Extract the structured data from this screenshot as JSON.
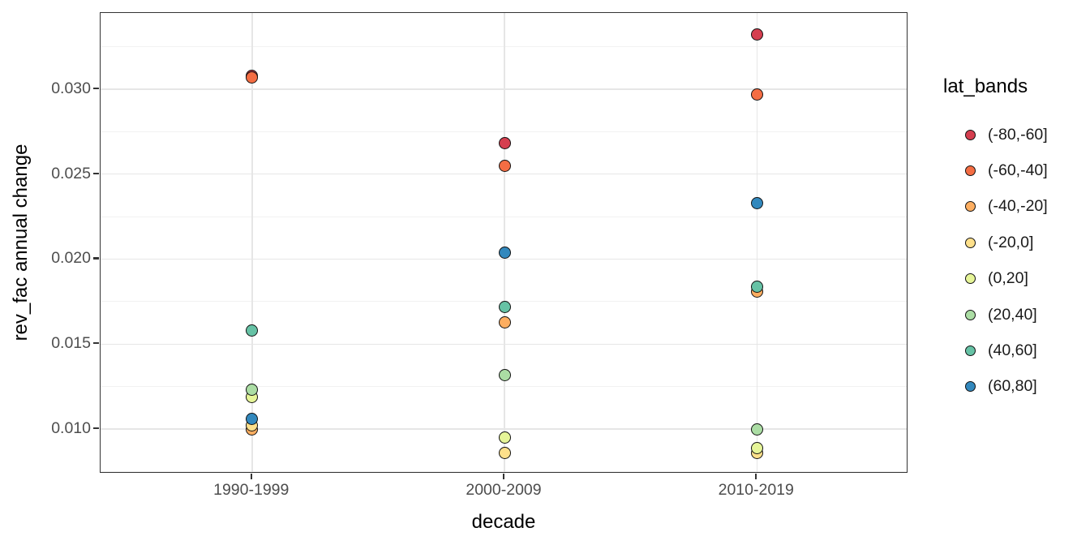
{
  "chart_data": {
    "type": "scatter",
    "title": "",
    "xlabel": "decade",
    "ylabel": "rev_fac annual change",
    "categories": [
      "1990-1999",
      "2000-2009",
      "2010-2019"
    ],
    "series": [
      {
        "name": "(-80,-60]",
        "color": "#D53E4F",
        "values": [
          0.0308,
          0.0268,
          0.0332
        ]
      },
      {
        "name": "(-60,-40]",
        "color": "#F46D43",
        "values": [
          0.0307,
          0.0255,
          0.0297
        ]
      },
      {
        "name": "(-40,-20]",
        "color": "#FDAE61",
        "values": [
          0.01,
          0.0163,
          0.0181
        ]
      },
      {
        "name": "(-20,0]",
        "color": "#FEE08B",
        "values": [
          0.0102,
          0.0086,
          0.0086
        ]
      },
      {
        "name": "(0,20]",
        "color": "#E6F598",
        "values": [
          0.0119,
          0.0095,
          0.0089
        ]
      },
      {
        "name": "(20,40]",
        "color": "#ABDDA4",
        "values": [
          0.0123,
          0.0132,
          0.01
        ]
      },
      {
        "name": "(40,60]",
        "color": "#66C2A5",
        "values": [
          0.0158,
          0.0172,
          0.0184
        ]
      },
      {
        "name": "(60,80]",
        "color": "#3288BD",
        "values": [
          0.0106,
          0.0204,
          0.0233
        ]
      }
    ],
    "y_ticks": [
      0.01,
      0.015,
      0.02,
      0.025,
      0.03
    ],
    "y_tick_labels": [
      "0.010",
      "0.015",
      "0.020",
      "0.025",
      "0.030"
    ],
    "ylim": [
      0.00738,
      0.03448
    ],
    "grid": "major+minor horizontal, major vertical at categories",
    "legend": {
      "title": "lat_bands",
      "position": "right"
    }
  }
}
